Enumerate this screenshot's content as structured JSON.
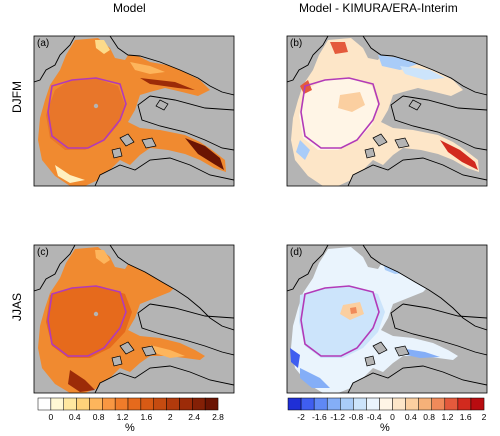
{
  "figure": {
    "column_titles": [
      "Model",
      "Model - KIMURA/ERA-Interim"
    ],
    "row_labels": [
      "DJFM",
      "JJAS"
    ],
    "panel_labels": [
      "(a)",
      "(b)",
      "(c)",
      "(d)"
    ],
    "land_color": "#b4b4b4",
    "coast_color": "#000000",
    "region_outline_color": "#b23ab8"
  },
  "colorbars": {
    "model": {
      "unit": "%",
      "ticks": [
        "0",
        "0.4",
        "0.8",
        "1.2",
        "1.6",
        "2",
        "2.4",
        "2.8"
      ],
      "colors": [
        "#ffffff",
        "#fff8d4",
        "#ffe8a0",
        "#fed27a",
        "#fdb55c",
        "#f99742",
        "#f07c2a",
        "#e66a1c",
        "#d85a14",
        "#c54b10",
        "#b23a0c",
        "#9c2b08",
        "#842006",
        "#6b1403"
      ]
    },
    "difference": {
      "unit": "%",
      "ticks": [
        "-2",
        "-1.6",
        "-1.2",
        "-0.8",
        "-0.4",
        "0",
        "0.4",
        "0.8",
        "1.2",
        "1.6",
        "2"
      ],
      "colors": [
        "#1f2fd6",
        "#3f5ef0",
        "#5f88f5",
        "#84aef7",
        "#a9ccf8",
        "#cce4fb",
        "#eaf4fd",
        "#fff5e6",
        "#fde6c8",
        "#fbcfa0",
        "#f6b179",
        "#f08a5a",
        "#e45a3c",
        "#d22a1e",
        "#b80c10"
      ]
    }
  }
}
